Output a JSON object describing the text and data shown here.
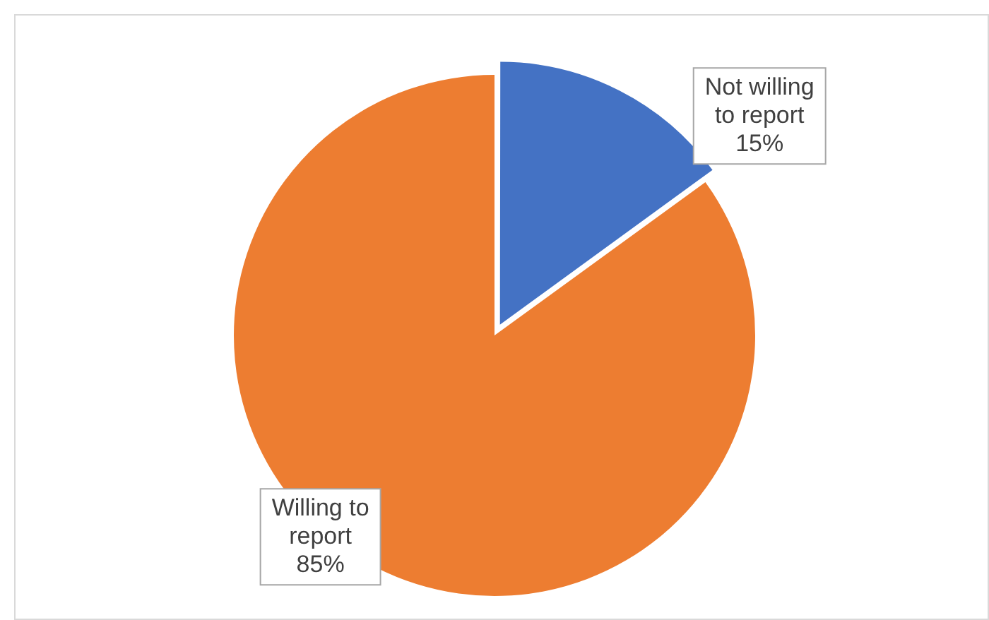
{
  "chart_data": {
    "type": "pie",
    "categories": [
      "Not willing to report",
      "Willing to report"
    ],
    "values": [
      15,
      85
    ],
    "colors": [
      "#4472c4",
      "#ed7d31"
    ],
    "value_labels": [
      "15%",
      "85%"
    ],
    "legend": false
  }
}
